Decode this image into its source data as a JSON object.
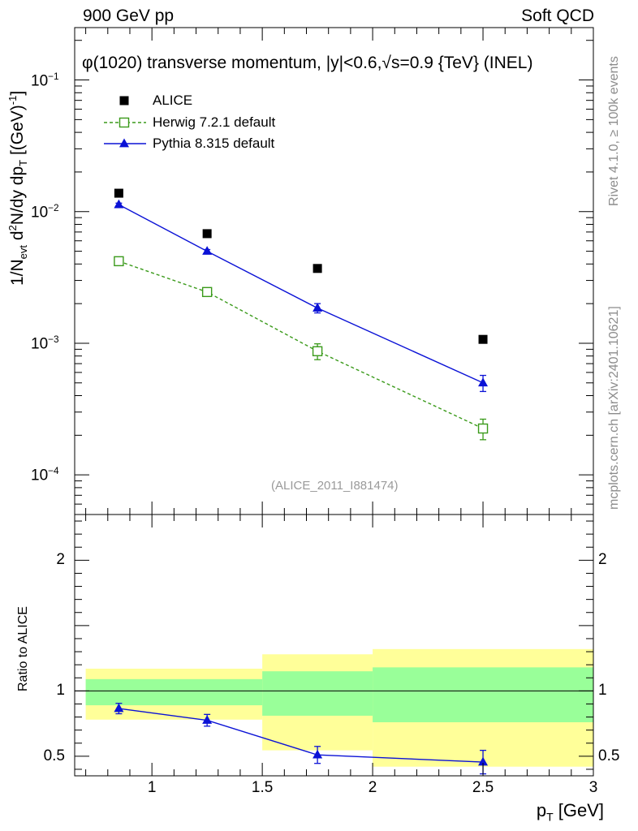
{
  "header": {
    "left": "900 GeV pp",
    "right": "Soft QCD"
  },
  "side_texts": {
    "rivet": "Rivet 4.1.0, ≥ 100k events",
    "mcplots": "mcplots.cern.ch [arXiv:2401.10621]"
  },
  "colors": {
    "alice": "#000000",
    "herwig": "#3a9a1a",
    "pythia": "#0b12d6",
    "band_outer": "#ffff99",
    "band_inner": "#99ff99"
  },
  "chart_data": [
    {
      "type": "scatter",
      "scale": "log",
      "title": "φ(1020) transverse momentum, |y|<0.6,√s=0.9 {TeV} (INEL)",
      "analysis_tag": "(ALICE_2011_I881474)",
      "ylabel": "1/N_evt d²N/dy dp_T [(GeV)⁻¹]",
      "ylabel_parts": {
        "a": "1/N",
        "a_sub": "evt",
        "b": "d",
        "b_sup": "2",
        "c": "N/dy dp",
        "c_sub": "T",
        "d": " [(GeV)",
        "d_sup": "-1",
        "e": "]"
      },
      "xlim": [
        0.65,
        3.0
      ],
      "ylim": [
        5e-05,
        0.25
      ],
      "yticks": [
        {
          "value": 0.1,
          "base": "10",
          "exp": "−1"
        },
        {
          "value": 0.01,
          "base": "10",
          "exp": "−2"
        },
        {
          "value": 0.001,
          "base": "10",
          "exp": "−3"
        },
        {
          "value": 0.0001,
          "base": "10",
          "exp": "−4"
        }
      ],
      "legend": [
        {
          "name": "ALICE",
          "style": "square"
        },
        {
          "name": "Herwig 7.2.1 default",
          "style": "open-square-dashed"
        },
        {
          "name": "Pythia 8.315 default",
          "style": "triangle-line"
        }
      ],
      "series": [
        {
          "name": "ALICE",
          "x": [
            0.85,
            1.25,
            1.75,
            2.5
          ],
          "y": [
            0.0138,
            0.0068,
            0.0037,
            0.00107
          ],
          "err": [
            0,
            0,
            0,
            0
          ]
        },
        {
          "name": "Herwig 7.2.1 default",
          "x": [
            0.85,
            1.25,
            1.75,
            2.5
          ],
          "y": [
            0.0042,
            0.00245,
            0.00087,
            0.000225
          ],
          "err": [
            0.00015,
            0.0001,
            0.00012,
            4e-05
          ]
        },
        {
          "name": "Pythia 8.315 default",
          "x": [
            0.85,
            1.25,
            1.75,
            2.5
          ],
          "y": [
            0.0113,
            0.005,
            0.00185,
            0.0005
          ],
          "err": [
            0.0003,
            0.00015,
            0.00015,
            7e-05
          ]
        }
      ]
    },
    {
      "type": "ratio",
      "ylabel": "Ratio to ALICE",
      "xlabel": "p_T [GeV]",
      "xlabel_parts": {
        "a": "p",
        "a_sub": "T",
        "b": " [GeV]"
      },
      "xlim": [
        0.65,
        3.0
      ],
      "ylim": [
        0.35,
        2.35
      ],
      "xticks": [
        {
          "value": 1,
          "label": "1"
        },
        {
          "value": 1.5,
          "label": "1.5"
        },
        {
          "value": 2,
          "label": "2"
        },
        {
          "value": 2.5,
          "label": "2.5"
        },
        {
          "value": 3,
          "label": "3"
        }
      ],
      "yticks": [
        {
          "value": 0.5,
          "label": "0.5"
        },
        {
          "value": 1,
          "label": "1"
        },
        {
          "value": 2,
          "label": "2"
        }
      ],
      "bands": [
        {
          "x0": 0.7,
          "x1": 1.5,
          "outer": [
            0.78,
            1.17
          ],
          "inner": [
            0.89,
            1.09
          ]
        },
        {
          "x0": 1.5,
          "x1": 2.0,
          "outer": [
            0.545,
            1.28
          ],
          "inner": [
            0.81,
            1.15
          ]
        },
        {
          "x0": 2.0,
          "x1": 3.0,
          "outer": [
            0.42,
            1.32
          ],
          "inner": [
            0.76,
            1.18
          ]
        }
      ],
      "series": [
        {
          "name": "Pythia 8.315 default",
          "x": [
            0.85,
            1.25,
            1.75,
            2.5
          ],
          "y": [
            0.865,
            0.775,
            0.51,
            0.455
          ],
          "err": [
            0.04,
            0.045,
            0.065,
            0.09
          ]
        }
      ]
    }
  ]
}
